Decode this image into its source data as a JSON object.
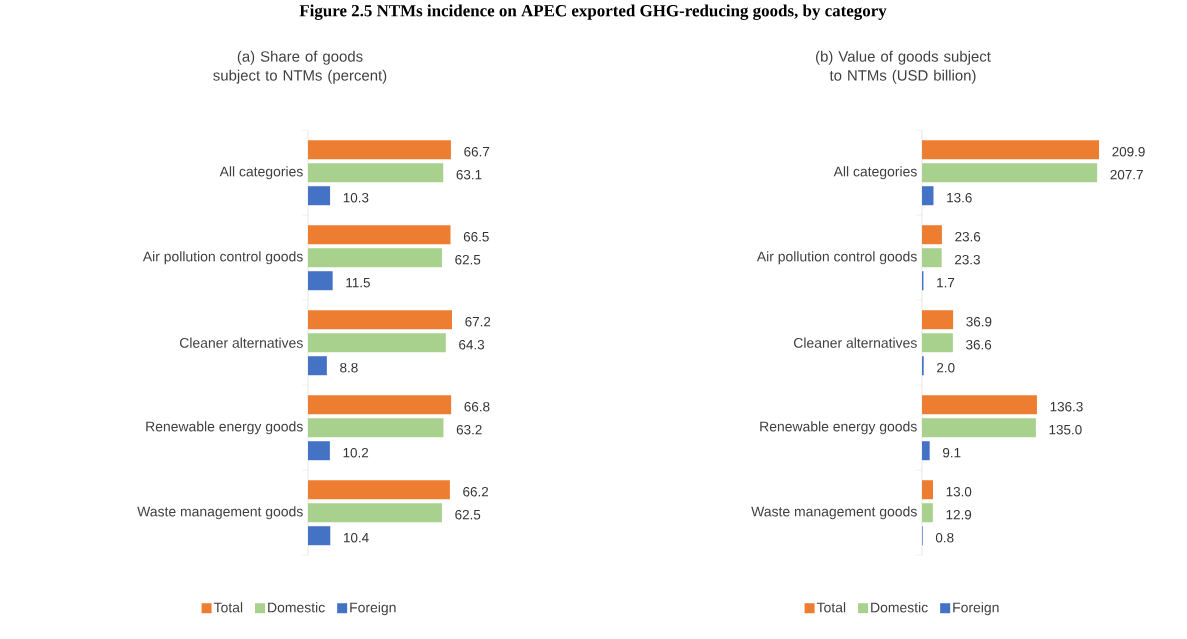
{
  "chart_data": [
    {
      "type": "bar",
      "orientation": "horizontal",
      "title": "(a) Share of goods subject to NTMs (percent)",
      "annotations": [
        "Figure 2.5 NTMs incidence on APEC exported GHG-reducing goods, by category"
      ],
      "categories": [
        "All categories",
        "Air pollution control goods",
        "Cleaner alternatives",
        "Renewable energy goods",
        "Waste management goods"
      ],
      "tick_labels": "y",
      "legend": "bottom",
      "series": [
        {
          "name": "Total",
          "color": "#ed7d31",
          "values": [
            66.7,
            66.5,
            67.2,
            66.8,
            66.2
          ],
          "value_labels": [
            "66.7",
            "66.5",
            "67.2",
            "66.8",
            "66.2"
          ]
        },
        {
          "name": "Domestic",
          "color": "#a9d18e",
          "values": [
            63.1,
            62.5,
            64.3,
            63.2,
            62.5
          ],
          "value_labels": [
            "63.1",
            "62.5",
            "64.3",
            "63.2",
            "62.5"
          ]
        },
        {
          "name": "Foreign",
          "color": "#4472c4",
          "values": [
            10.3,
            11.5,
            8.8,
            10.2,
            10.4
          ],
          "value_labels": [
            "10.3",
            "11.5",
            "8.8",
            "10.2",
            "10.4"
          ]
        }
      ]
    },
    {
      "type": "bar",
      "orientation": "horizontal",
      "title": "(b) Value of goods subject to NTMs (USD billion)",
      "categories": [
        "All categories",
        "Air pollution control goods",
        "Cleaner alternatives",
        "Renewable energy goods",
        "Waste management goods"
      ],
      "tick_labels": "y",
      "legend": "bottom",
      "series": [
        {
          "name": "Total",
          "color": "#ed7d31",
          "values": [
            209.9,
            23.6,
            36.9,
            136.3,
            13.0
          ],
          "value_labels": [
            "209.9",
            "23.6",
            "36.9",
            "136.3",
            "13.0"
          ]
        },
        {
          "name": "Domestic",
          "color": "#a9d18e",
          "values": [
            207.7,
            23.3,
            36.6,
            135.0,
            12.9
          ],
          "value_labels": [
            "207.7",
            "23.3",
            "36.6",
            "135.0",
            "12.9"
          ]
        },
        {
          "name": "Foreign",
          "color": "#4472c4",
          "values": [
            13.6,
            1.7,
            2.0,
            9.1,
            0.8
          ],
          "value_labels": [
            "13.6",
            "1.7",
            "2.0",
            "9.1",
            "0.8"
          ]
        }
      ]
    }
  ]
}
